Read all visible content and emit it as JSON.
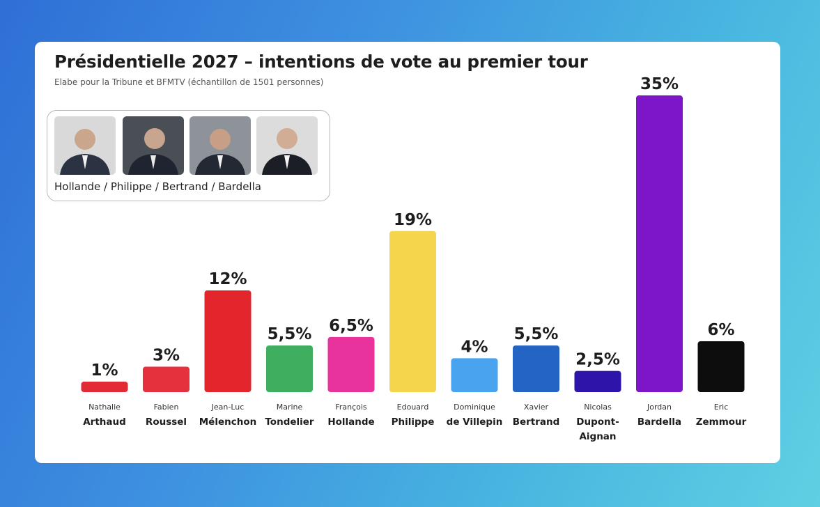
{
  "header": {
    "title": "Présidentielle 2027 – intentions de vote au premier tour",
    "subtitle": "Elabe pour la Tribune et  BFMTV (échantillon de 1501 personnes)"
  },
  "scenario": {
    "caption": "Hollande / Philippe / Bertrand / Bardella",
    "photos": [
      "Hollande",
      "Philippe",
      "Bertrand",
      "Bardella"
    ]
  },
  "chart_data": {
    "type": "bar",
    "title": "Présidentielle 2027 – intentions de vote au premier tour",
    "subtitle": "Elabe pour la Tribune et  BFMTV (échantillon de 1501 personnes)",
    "unit": "%",
    "ylim": [
      0,
      35
    ],
    "grid": false,
    "categories": [
      {
        "first": "Nathalie",
        "last": [
          "Arthaud"
        ],
        "value": 1,
        "label": "1%",
        "color": "#e22a35"
      },
      {
        "first": "Fabien",
        "last": [
          "Roussel"
        ],
        "value": 3,
        "label": "3%",
        "color": "#e5303d"
      },
      {
        "first": "Jean-Luc",
        "last": [
          "Mélenchon"
        ],
        "value": 12,
        "label": "12%",
        "color": "#e3262c"
      },
      {
        "first": "Marine",
        "last": [
          "Tondelier"
        ],
        "value": 5.5,
        "label": "5,5%",
        "color": "#3fae5f"
      },
      {
        "first": "François",
        "last": [
          "Hollande"
        ],
        "value": 6.5,
        "label": "6,5%",
        "color": "#e8329c"
      },
      {
        "first": "Edouard",
        "last": [
          "Philippe"
        ],
        "value": 19,
        "label": "19%",
        "color": "#f5d54b"
      },
      {
        "first": "Dominique",
        "last": [
          "de Villepin"
        ],
        "value": 4,
        "label": "4%",
        "color": "#4aa3ef"
      },
      {
        "first": "Xavier",
        "last": [
          "Bertrand"
        ],
        "value": 5.5,
        "label": "5,5%",
        "color": "#2465c4"
      },
      {
        "first": "Nicolas",
        "last": [
          "Dupont-",
          "Aignan"
        ],
        "value": 2.5,
        "label": "2,5%",
        "color": "#2e14a8"
      },
      {
        "first": "Jordan",
        "last": [
          "Bardella"
        ],
        "value": 35,
        "label": "35%",
        "color": "#7d16c8"
      },
      {
        "first": "Eric",
        "last": [
          "Zemmour"
        ],
        "value": 6,
        "label": "6%",
        "color": "#0d0d0d"
      }
    ]
  }
}
